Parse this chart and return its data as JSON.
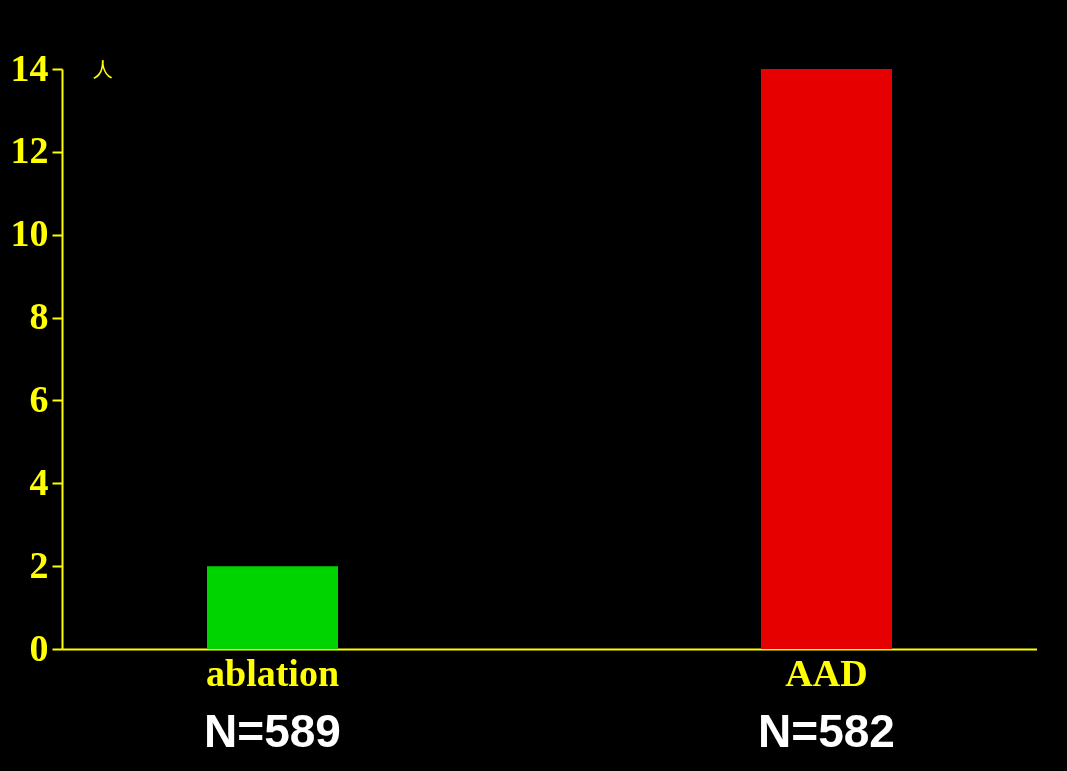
{
  "chart_data": {
    "type": "bar",
    "ylabel": "人",
    "categories": [
      "ablation",
      "AAD"
    ],
    "values": [
      2,
      14
    ],
    "colors": [
      "#00d400",
      "#e60000"
    ],
    "ylim": [
      0,
      14
    ],
    "yticks": [
      0,
      2,
      4,
      6,
      8,
      10,
      12,
      14
    ],
    "grid": false,
    "annotations": [
      "N=589",
      "N=582"
    ]
  }
}
